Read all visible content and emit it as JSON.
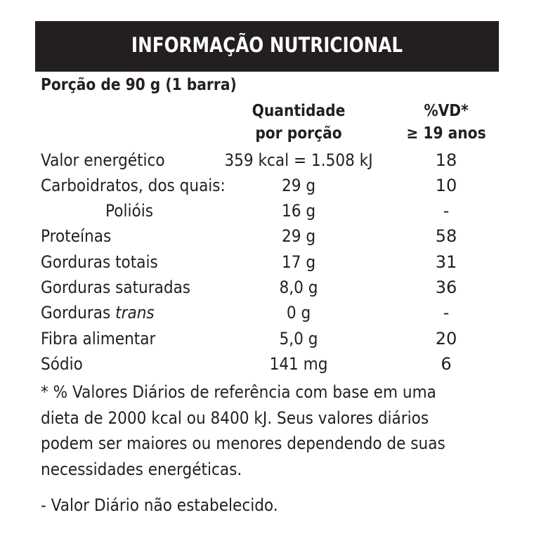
{
  "header": {
    "title": "INFORMAÇÃO NUTRICIONAL"
  },
  "portion": "Porção de 90 g (1 barra)",
  "columns": {
    "qty_line1": "Quantidade",
    "qty_line2": "por porção",
    "vd_line1": "%VD*",
    "vd_line2": "≥ 19 anos"
  },
  "rows": [
    {
      "label": "Valor energético",
      "qty": "359 kcal = 1.508 kJ",
      "vd": "18"
    },
    {
      "label": "Carboidratos, dos quais:",
      "qty": "29 g",
      "vd": "10"
    },
    {
      "label": "Polióis",
      "qty": "16 g",
      "vd": "-"
    },
    {
      "label": "Proteínas",
      "qty": "29 g",
      "vd": "58"
    },
    {
      "label": "Gorduras totais",
      "qty": "17 g",
      "vd": "31"
    },
    {
      "label": "Gorduras saturadas",
      "qty": "8,0 g",
      "vd": "36"
    },
    {
      "label_prefix": "Gorduras ",
      "label_italic": "trans",
      "qty": "0 g",
      "vd": "-"
    },
    {
      "label": "Fibra alimentar",
      "qty": "5,0 g",
      "vd": "20"
    },
    {
      "label": "Sódio",
      "qty": "141 mg",
      "vd": "6"
    }
  ],
  "footnote": {
    "line1": "* % Valores Diários de referência com base em uma",
    "line2": "dieta de 2000 kcal ou 8400 kJ. Seus valores diários",
    "line3": "podem ser maiores ou menores dependendo de suas",
    "line4": "necessidades energéticas."
  },
  "note": "- Valor Diário não estabelecido."
}
